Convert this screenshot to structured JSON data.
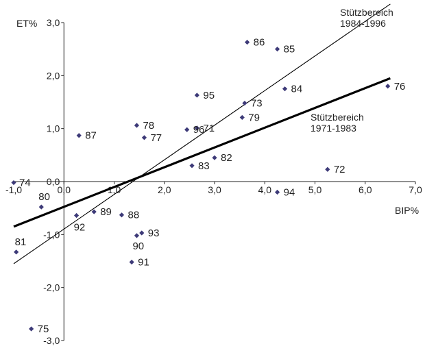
{
  "chart_data": {
    "type": "scatter",
    "xlabel": "BIP%",
    "ylabel": "ET%",
    "xlim": [
      -1.0,
      7.0
    ],
    "ylim": [
      -3.0,
      3.0
    ],
    "x_ticks": [
      "-1,0",
      "0,0",
      "1,0",
      "2,0",
      "3,0",
      "4,0",
      "5,0",
      "6,0",
      "7,0"
    ],
    "y_ticks": [
      "3,0",
      "2,0",
      "1,0",
      "0,0",
      "-1,0",
      "-2,0",
      "-3,0"
    ],
    "grid": false,
    "points": [
      {
        "label": "71",
        "x": 2.65,
        "y": 1.01
      },
      {
        "label": "72",
        "x": 5.25,
        "y": 0.23
      },
      {
        "label": "73",
        "x": 3.6,
        "y": 1.48
      },
      {
        "label": "74",
        "x": -1.0,
        "y": -0.02
      },
      {
        "label": "75",
        "x": -0.65,
        "y": -2.78
      },
      {
        "label": "76",
        "x": 6.45,
        "y": 1.8
      },
      {
        "label": "77",
        "x": 1.6,
        "y": 0.83
      },
      {
        "label": "78",
        "x": 1.45,
        "y": 1.06
      },
      {
        "label": "79",
        "x": 3.55,
        "y": 1.21
      },
      {
        "label": "80",
        "x": -0.45,
        "y": -0.48
      },
      {
        "label": "81",
        "x": -0.95,
        "y": -1.33
      },
      {
        "label": "82",
        "x": 3.0,
        "y": 0.45
      },
      {
        "label": "83",
        "x": 2.55,
        "y": 0.3
      },
      {
        "label": "84",
        "x": 4.4,
        "y": 1.75
      },
      {
        "label": "85",
        "x": 4.25,
        "y": 2.5
      },
      {
        "label": "86",
        "x": 3.65,
        "y": 2.63
      },
      {
        "label": "87",
        "x": 0.3,
        "y": 0.87
      },
      {
        "label": "88",
        "x": 1.15,
        "y": -0.63
      },
      {
        "label": "89",
        "x": 0.6,
        "y": -0.57
      },
      {
        "label": "90",
        "x": 1.45,
        "y": -1.02
      },
      {
        "label": "91",
        "x": 1.35,
        "y": -1.52
      },
      {
        "label": "92",
        "x": 0.25,
        "y": -0.64
      },
      {
        "label": "93",
        "x": 1.55,
        "y": -0.97
      },
      {
        "label": "94",
        "x": 4.25,
        "y": -0.2
      },
      {
        "label": "95",
        "x": 2.65,
        "y": 1.63
      },
      {
        "label": "96",
        "x": 2.45,
        "y": 0.98
      }
    ],
    "fit_lines": [
      {
        "label_line1": "Stützbereich",
        "label_line2": "1984-1996",
        "x1": -1.0,
        "y1": -1.55,
        "x2": 6.5,
        "y2": 3.35,
        "thick": false
      },
      {
        "label_line1": "Stützbereich",
        "label_line2": "1971-1983",
        "x1": -1.0,
        "y1": -0.85,
        "x2": 6.5,
        "y2": 1.95,
        "thick": true
      }
    ],
    "colors": {
      "marker": "#3d3a78",
      "axis": "#222222",
      "line": "#000000"
    }
  }
}
